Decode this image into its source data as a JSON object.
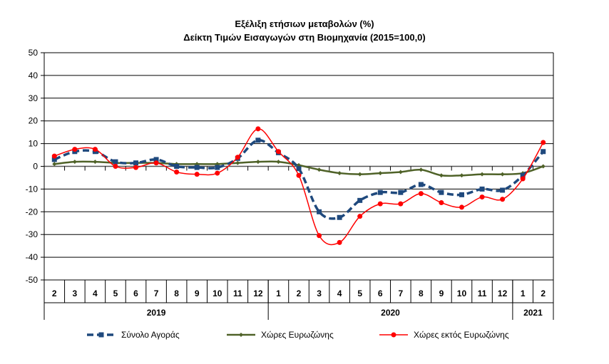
{
  "chart_data": {
    "type": "line",
    "title": "Εξέλιξη ετήσιων μεταβολών (%)",
    "subtitle": "Δείκτη Τιμών Εισαγωγών στη Βιομηχανία (2015=100,0)",
    "categories": [
      "2",
      "3",
      "4",
      "5",
      "6",
      "7",
      "8",
      "9",
      "10",
      "11",
      "12",
      "1",
      "2",
      "3",
      "4",
      "5",
      "6",
      "7",
      "8",
      "9",
      "10",
      "11",
      "12",
      "1",
      "2"
    ],
    "year_groups": [
      {
        "label": "2019",
        "count": 11
      },
      {
        "label": "2020",
        "count": 12
      },
      {
        "label": "2021",
        "count": 2
      }
    ],
    "ylim": [
      -50,
      50
    ],
    "yticks": [
      "50",
      "40",
      "30",
      "20",
      "10",
      "0",
      "-10",
      "-20",
      "-30",
      "-40",
      "-50"
    ],
    "grid": true,
    "legend": "bottom",
    "series": [
      {
        "name": "Σύνολο Αγοράς",
        "color": "#1F497D",
        "values": [
          3,
          6.5,
          6.5,
          2,
          1.5,
          3,
          0,
          -0.5,
          -0.5,
          3.5,
          11.5,
          6,
          -1,
          -20,
          -22.5,
          -15,
          -11.5,
          -11.5,
          -8,
          -11.5,
          -12.5,
          -10,
          -10.5,
          -4,
          6.5
        ]
      },
      {
        "name": "Χώρες Ευρωζώνης",
        "color": "#4F6228",
        "values": [
          1,
          2,
          2,
          1.5,
          1.5,
          1.5,
          1,
          1,
          1,
          1.5,
          2,
          2,
          0.5,
          -1.5,
          -3,
          -3.5,
          -3,
          -2.5,
          -1.5,
          -4,
          -4,
          -3.5,
          -3.5,
          -3,
          0
        ]
      },
      {
        "name": "Χώρες εκτός Ευρωζώνης",
        "color": "#FF0000",
        "values": [
          4.5,
          7.5,
          7.5,
          0,
          -0.5,
          1.5,
          -2.5,
          -3.5,
          -3,
          4,
          16.5,
          6.5,
          -4,
          -30.5,
          -33.5,
          -22,
          -16.5,
          -16.5,
          -12,
          -16,
          -18,
          -13.5,
          -14.5,
          -5.5,
          10.5
        ]
      }
    ]
  }
}
